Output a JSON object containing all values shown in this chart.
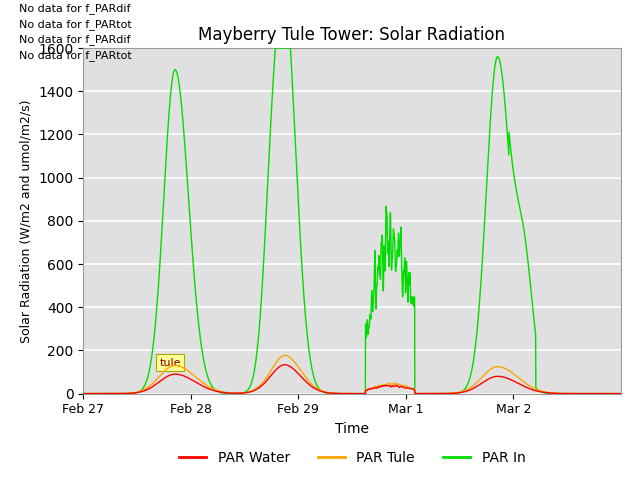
{
  "title": "Mayberry Tule Tower: Solar Radiation",
  "xlabel": "Time",
  "ylabel": "Solar Radiation (W/m2 and umol/m2/s)",
  "ylim": [
    0,
    1600
  ],
  "yticks": [
    0,
    200,
    400,
    600,
    800,
    1000,
    1200,
    1400,
    1600
  ],
  "plot_bg": "#e0e0e0",
  "legend_labels": [
    "PAR Water",
    "PAR Tule",
    "PAR In"
  ],
  "legend_colors": [
    "#ff0000",
    "#ffa500",
    "#00dd00"
  ],
  "no_data_texts": [
    "No data for f_PARdif",
    "No data for f_PARtot",
    "No data for f_PARdif",
    "No data for f_PARtot"
  ],
  "tooltip_text": "tule",
  "tooltip_bg": "#ffff99",
  "xtick_labels": [
    "Feb 27",
    "Feb 28",
    "Feb 29",
    "Mar 1",
    "Mar 2"
  ],
  "xtick_positions": [
    0,
    24,
    48,
    72,
    96
  ]
}
